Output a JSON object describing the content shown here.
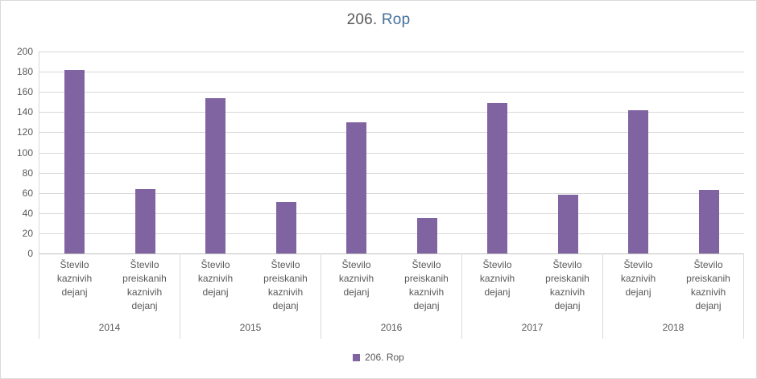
{
  "title": {
    "prefix": "206.",
    "emphasis": "Rop"
  },
  "legend": {
    "label": "206. Rop"
  },
  "colors": {
    "bar": "#8064a2",
    "gridline": "#d9d9d9",
    "axis_line": "#bfbfbf",
    "text": "#595959",
    "title_prefix": "#595959",
    "title_emphasis": "#44709d"
  },
  "chart_data": {
    "type": "bar",
    "title": "206. Rop",
    "legend_position": "bottom",
    "grid": true,
    "ylim": [
      0,
      200
    ],
    "yticks": [
      0,
      20,
      40,
      60,
      80,
      100,
      120,
      140,
      160,
      180,
      200
    ],
    "subcategories": [
      "Število kaznivih dejanj",
      "Število preiskanih kaznivih dejanj"
    ],
    "groups": [
      {
        "year": "2014",
        "values": [
          182,
          64
        ]
      },
      {
        "year": "2015",
        "values": [
          154,
          51
        ]
      },
      {
        "year": "2016",
        "values": [
          130,
          35
        ]
      },
      {
        "year": "2017",
        "values": [
          149,
          58
        ]
      },
      {
        "year": "2018",
        "values": [
          142,
          63
        ]
      }
    ],
    "series": [
      {
        "name": "206. Rop",
        "values": [
          182,
          64,
          154,
          51,
          130,
          35,
          149,
          58,
          142,
          63
        ]
      }
    ]
  }
}
